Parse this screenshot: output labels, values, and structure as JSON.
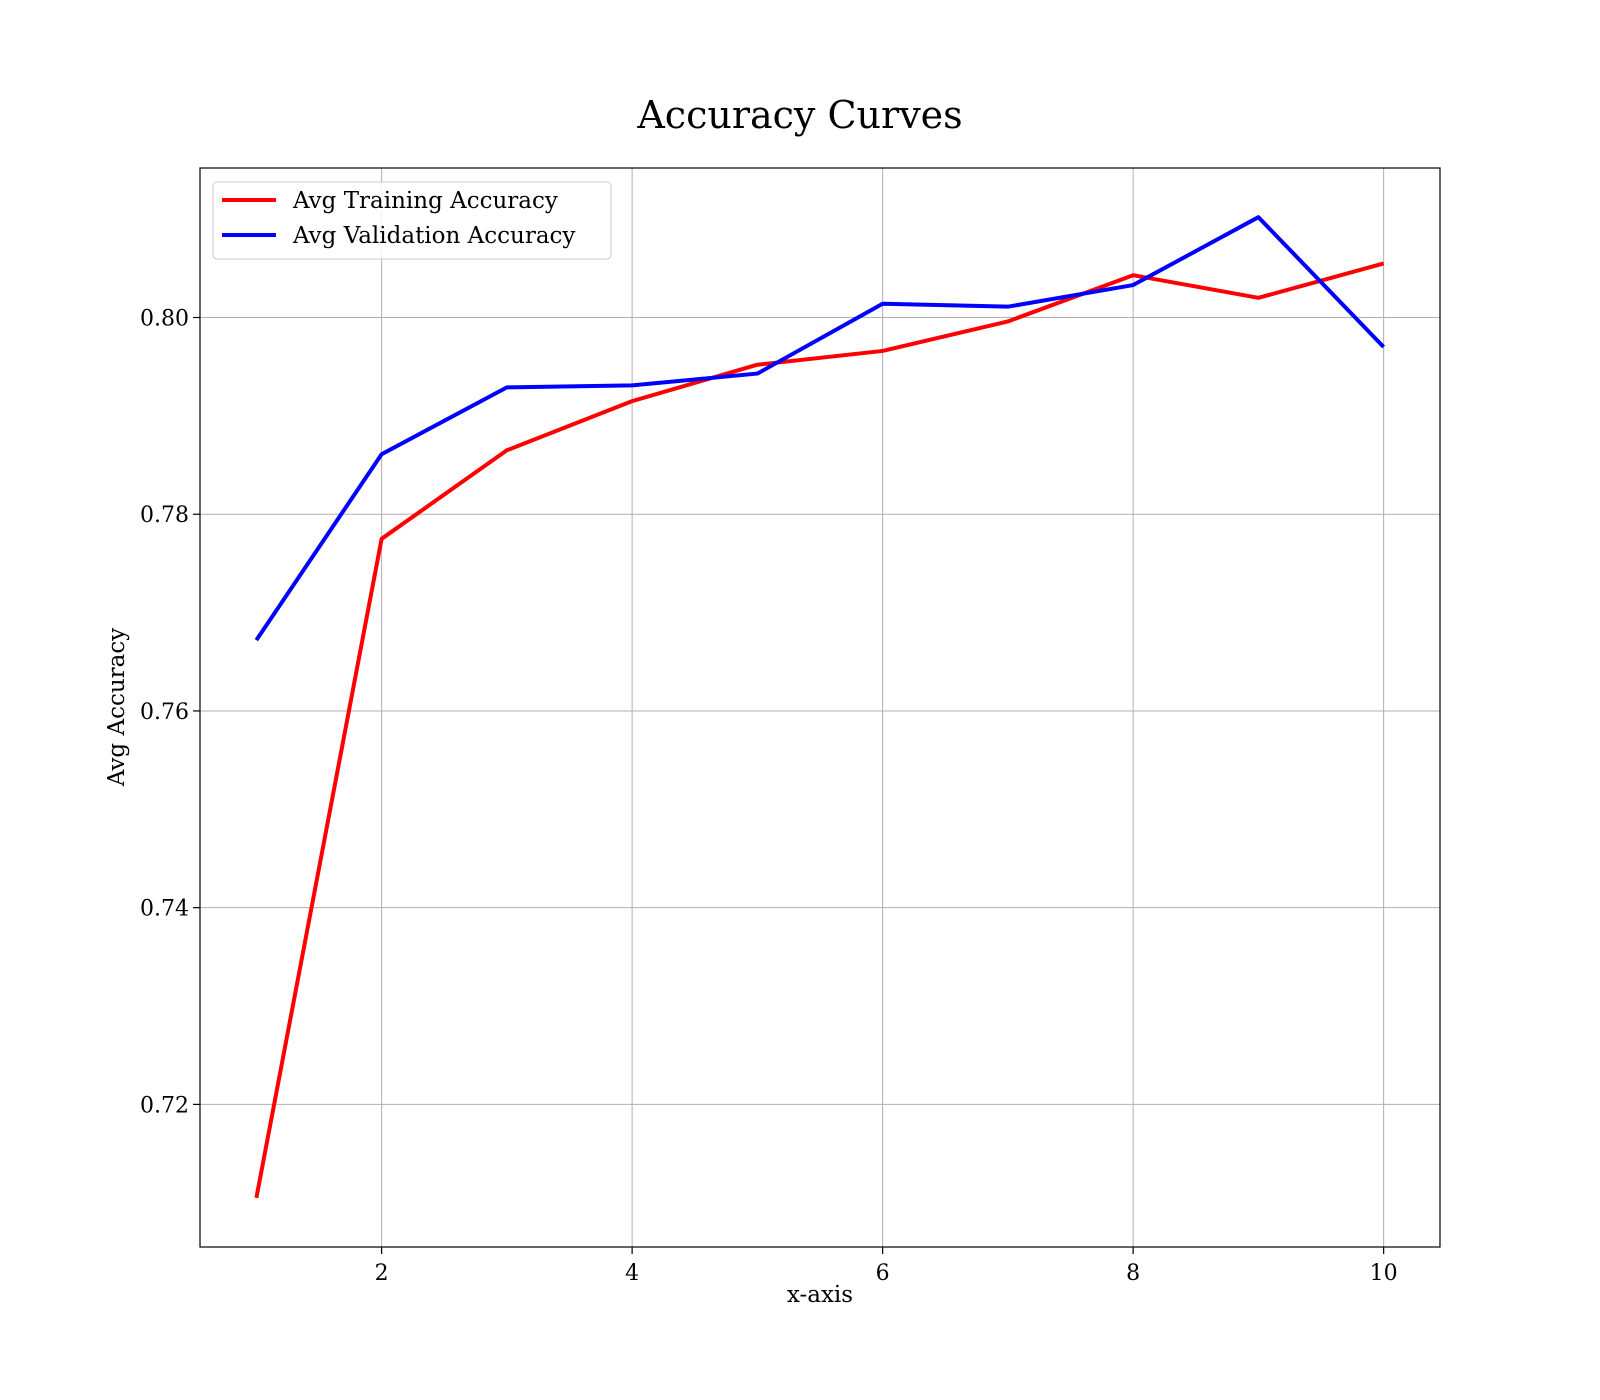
{
  "chart_data": {
    "type": "line",
    "title": "Accuracy Curves",
    "xlabel": "x-axis",
    "ylabel": "Avg Accuracy",
    "x": [
      1,
      2,
      3,
      4,
      5,
      6,
      7,
      8,
      9,
      10
    ],
    "xlim": [
      0.55,
      10.45
    ],
    "ylim": [
      0.7055,
      0.8152
    ],
    "xticks": [
      2,
      4,
      6,
      8,
      10
    ],
    "xtick_labels": [
      "2",
      "4",
      "6",
      "8",
      "10"
    ],
    "yticks": [
      0.72,
      0.74,
      0.76,
      0.78,
      0.8
    ],
    "ytick_labels": [
      "0.72",
      "0.74",
      "0.76",
      "0.78",
      "0.80"
    ],
    "grid": true,
    "legend_position": "top-left",
    "series": [
      {
        "name": "Avg Training Accuracy",
        "color": "#ff0000",
        "values": [
          0.7105,
          0.7775,
          0.7865,
          0.7915,
          0.7952,
          0.7966,
          0.7996,
          0.8043,
          0.802,
          0.8055
        ]
      },
      {
        "name": "Avg Validation Accuracy",
        "color": "#0000ff",
        "values": [
          0.7672,
          0.7861,
          0.7929,
          0.7931,
          0.7943,
          0.8014,
          0.8011,
          0.8033,
          0.8102,
          0.797
        ]
      }
    ]
  }
}
